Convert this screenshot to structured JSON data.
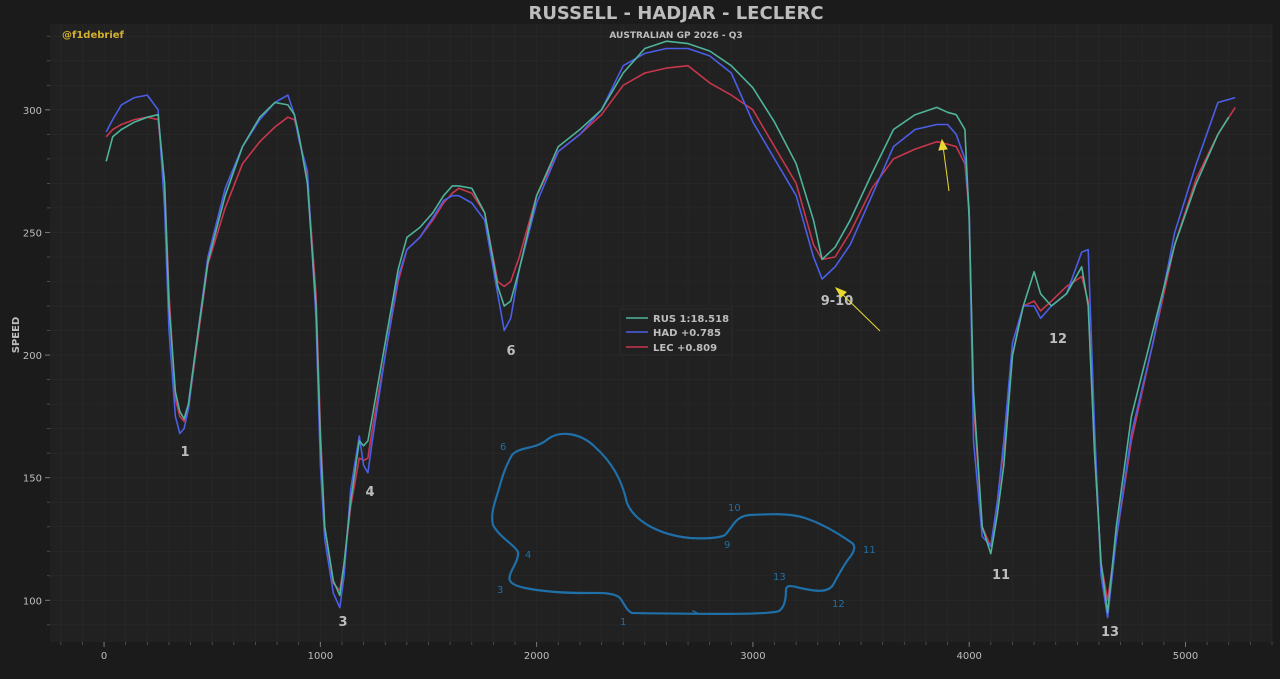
{
  "page": {
    "title": "RUSSELL - HADJAR - LECLERC",
    "subtitle": "AUSTRALIAN GP 2026 - Q3",
    "watermark": "@f1debrief"
  },
  "colors": {
    "background": "#1b1b1b",
    "plot_background": "#212121",
    "grid": "#2b2b2b",
    "text": "#bdbdbd",
    "watermark": "#d4b030",
    "annotation_arrow": "#e8d830",
    "track_map": "#1f6fa8",
    "russell": "#4fb39a",
    "hadjar": "#4a5ee8",
    "leclerc": "#c8364e"
  },
  "chart_data": {
    "type": "line",
    "title": "RUSSELL - HADJAR - LECLERC",
    "subtitle": "AUSTRALIAN GP 2026 - Q3",
    "xlabel": "",
    "ylabel": "SPEED",
    "xlim": [
      -250,
      5400
    ],
    "ylim": [
      83,
      335
    ],
    "xticks": [
      0,
      1000,
      2000,
      3000,
      4000,
      5000
    ],
    "yticks": [
      100,
      150,
      200,
      250,
      300
    ],
    "grid": true,
    "legend_position": "center",
    "series": [
      {
        "name": "RUS 1:18.518",
        "color": "#4fb39a",
        "x": [
          10,
          40,
          80,
          140,
          200,
          250,
          280,
          300,
          330,
          350,
          370,
          390,
          420,
          480,
          560,
          640,
          720,
          790,
          850,
          880,
          900,
          940,
          980,
          1000,
          1020,
          1060,
          1090,
          1110,
          1140,
          1180,
          1200,
          1220,
          1240,
          1300,
          1360,
          1400,
          1460,
          1520,
          1570,
          1610,
          1640,
          1700,
          1760,
          1820,
          1850,
          1880,
          1920,
          2000,
          2100,
          2200,
          2300,
          2400,
          2500,
          2600,
          2700,
          2800,
          2900,
          3000,
          3100,
          3200,
          3280,
          3320,
          3380,
          3450,
          3550,
          3650,
          3750,
          3850,
          3900,
          3940,
          3980,
          4000,
          4020,
          4060,
          4100,
          4130,
          4160,
          4200,
          4250,
          4300,
          4330,
          4380,
          4450,
          4520,
          4550,
          4580,
          4610,
          4640,
          4680,
          4750,
          4850,
          4950,
          5050,
          5150,
          5200
        ],
        "y": [
          279,
          289,
          292,
          295,
          297,
          298,
          270,
          220,
          185,
          177,
          174,
          180,
          200,
          238,
          265,
          285,
          297,
          303,
          302,
          298,
          290,
          270,
          220,
          165,
          130,
          108,
          102,
          115,
          140,
          165,
          163,
          165,
          175,
          205,
          235,
          248,
          252,
          258,
          265,
          269,
          269,
          268,
          258,
          228,
          220,
          222,
          235,
          265,
          285,
          292,
          300,
          315,
          325,
          328,
          327,
          324,
          318,
          309,
          295,
          278,
          255,
          239,
          244,
          255,
          274,
          292,
          298,
          301,
          299,
          298,
          292,
          255,
          185,
          130,
          119,
          135,
          155,
          200,
          220,
          234,
          225,
          220,
          225,
          236,
          220,
          160,
          115,
          95,
          130,
          175,
          210,
          245,
          270,
          290,
          297
        ],
        "labels": []
      },
      {
        "name": "HAD +0.785",
        "color": "#4a5ee8",
        "x": [
          10,
          40,
          80,
          140,
          200,
          250,
          280,
          300,
          330,
          350,
          370,
          390,
          420,
          480,
          560,
          640,
          720,
          790,
          850,
          880,
          900,
          940,
          980,
          1000,
          1020,
          1060,
          1090,
          1110,
          1140,
          1180,
          1200,
          1220,
          1240,
          1300,
          1360,
          1400,
          1460,
          1520,
          1570,
          1610,
          1640,
          1700,
          1760,
          1820,
          1850,
          1880,
          1920,
          2000,
          2100,
          2200,
          2300,
          2400,
          2500,
          2600,
          2700,
          2800,
          2900,
          3000,
          3100,
          3200,
          3280,
          3320,
          3380,
          3450,
          3550,
          3650,
          3750,
          3850,
          3900,
          3940,
          3980,
          4000,
          4020,
          4060,
          4100,
          4130,
          4160,
          4200,
          4250,
          4300,
          4330,
          4380,
          4450,
          4520,
          4550,
          4580,
          4610,
          4640,
          4680,
          4750,
          4850,
          4950,
          5050,
          5150,
          5230
        ],
        "y": [
          291,
          296,
          302,
          305,
          306,
          300,
          260,
          210,
          175,
          168,
          170,
          178,
          200,
          240,
          268,
          285,
          296,
          303,
          306,
          298,
          288,
          275,
          215,
          155,
          125,
          103,
          97,
          110,
          145,
          167,
          155,
          152,
          165,
          200,
          232,
          243,
          248,
          256,
          263,
          265,
          265,
          262,
          255,
          225,
          210,
          215,
          235,
          262,
          283,
          290,
          300,
          318,
          323,
          325,
          325,
          322,
          315,
          295,
          280,
          265,
          240,
          231,
          236,
          245,
          265,
          285,
          292,
          294,
          294,
          290,
          280,
          260,
          165,
          126,
          122,
          140,
          165,
          205,
          220,
          220,
          215,
          220,
          225,
          242,
          243,
          170,
          110,
          93,
          125,
          168,
          205,
          250,
          278,
          303,
          305
        ],
        "labels": []
      },
      {
        "name": "LEC +0.809",
        "color": "#c8364e",
        "x": [
          10,
          40,
          80,
          140,
          200,
          250,
          280,
          300,
          330,
          350,
          370,
          390,
          420,
          480,
          560,
          640,
          720,
          790,
          850,
          880,
          900,
          940,
          980,
          1000,
          1020,
          1060,
          1090,
          1110,
          1140,
          1180,
          1200,
          1220,
          1240,
          1300,
          1360,
          1400,
          1460,
          1520,
          1570,
          1610,
          1640,
          1700,
          1760,
          1820,
          1850,
          1880,
          1920,
          2000,
          2100,
          2200,
          2300,
          2400,
          2500,
          2600,
          2700,
          2800,
          2900,
          3000,
          3100,
          3200,
          3280,
          3320,
          3380,
          3450,
          3550,
          3650,
          3750,
          3850,
          3900,
          3940,
          3980,
          4000,
          4020,
          4060,
          4100,
          4130,
          4160,
          4200,
          4250,
          4300,
          4330,
          4380,
          4450,
          4520,
          4550,
          4580,
          4610,
          4640,
          4680,
          4750,
          4850,
          4950,
          5050,
          5150,
          5230
        ],
        "y": [
          289,
          292,
          294,
          296,
          297,
          296,
          270,
          225,
          182,
          175,
          173,
          178,
          198,
          237,
          260,
          278,
          287,
          293,
          297,
          296,
          290,
          272,
          225,
          170,
          130,
          107,
          104,
          115,
          138,
          158,
          157,
          158,
          170,
          200,
          230,
          243,
          248,
          255,
          262,
          266,
          268,
          266,
          258,
          230,
          228,
          230,
          240,
          265,
          283,
          290,
          298,
          310,
          315,
          317,
          318,
          311,
          306,
          300,
          285,
          270,
          245,
          239,
          240,
          250,
          268,
          280,
          284,
          287,
          286,
          285,
          278,
          258,
          180,
          130,
          122,
          140,
          162,
          200,
          220,
          222,
          218,
          222,
          228,
          232,
          222,
          160,
          115,
          100,
          125,
          165,
          205,
          245,
          272,
          290,
          301
        ],
        "labels": []
      }
    ],
    "annotations": [
      "1",
      "3",
      "4",
      "6",
      "9-10",
      "11",
      "12",
      "13"
    ],
    "track_map_labels": [
      "1",
      "3",
      "4",
      "6",
      "9",
      "10",
      "11",
      "12",
      "13"
    ]
  }
}
